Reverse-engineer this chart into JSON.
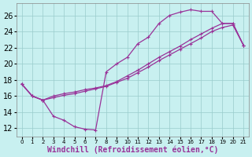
{
  "bg_color": "#c8f0f0",
  "line_color": "#993399",
  "grid_color": "#99cccc",
  "xlim": [
    -0.5,
    21.5
  ],
  "ylim": [
    11.0,
    27.5
  ],
  "xticks": [
    0,
    1,
    2,
    3,
    4,
    5,
    6,
    7,
    8,
    9,
    10,
    11,
    12,
    13,
    14,
    15,
    16,
    17,
    18,
    19,
    20,
    21
  ],
  "yticks": [
    12,
    14,
    16,
    18,
    20,
    22,
    24,
    26
  ],
  "xlabel": "Windchill (Refroidissement éolien,°C)",
  "font_size": 7,
  "linewidth": 0.9,
  "marker_size": 3.5,
  "line1_x": [
    0,
    1,
    2,
    3,
    4,
    5,
    6,
    7,
    8,
    9,
    10,
    11,
    12,
    13,
    14,
    15,
    16,
    17,
    18,
    19,
    20,
    21
  ],
  "line1_y": [
    17.5,
    16.0,
    15.5,
    13.5,
    13.0,
    12.2,
    11.9,
    11.8,
    19.0,
    20.0,
    20.8,
    22.5,
    23.3,
    25.0,
    26.0,
    26.4,
    26.7,
    26.5,
    26.5,
    25.0,
    25.0,
    22.3
  ],
  "line2_x": [
    0,
    1,
    2,
    3,
    4,
    5,
    6,
    7,
    8,
    9,
    10,
    11,
    12,
    13,
    14,
    15,
    16,
    17,
    18,
    19,
    20,
    21
  ],
  "line2_y": [
    17.5,
    16.0,
    15.5,
    16.0,
    16.3,
    16.5,
    16.8,
    17.0,
    17.3,
    17.8,
    18.5,
    19.2,
    20.0,
    20.8,
    21.5,
    22.2,
    23.0,
    23.7,
    24.4,
    25.0,
    25.0,
    22.3
  ],
  "line3_x": [
    0,
    1,
    2,
    3,
    4,
    5,
    6,
    7,
    8,
    9,
    10,
    11,
    12,
    13,
    14,
    15,
    16,
    17,
    18,
    19,
    20,
    21
  ],
  "line3_y": [
    17.5,
    16.0,
    15.5,
    15.8,
    16.1,
    16.3,
    16.6,
    16.9,
    17.2,
    17.7,
    18.2,
    18.9,
    19.6,
    20.4,
    21.1,
    21.8,
    22.5,
    23.2,
    24.0,
    24.5,
    24.8,
    22.3
  ]
}
